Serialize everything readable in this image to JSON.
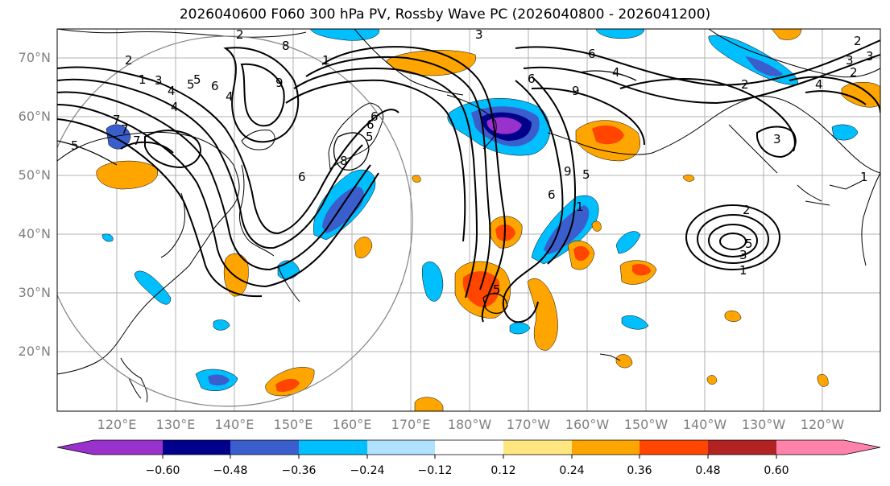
{
  "title": "2026040600 F060 300 hPa PV, Rossby Wave PC (2026040800 - 2026041200)",
  "lat_labels": [
    "70°N",
    "60°N",
    "50°N",
    "40°N",
    "30°N",
    "20°N"
  ],
  "lon_labels": [
    "120°E",
    "130°E",
    "140°E",
    "150°E",
    "160°E",
    "170°E",
    "180°W",
    "170°W",
    "160°W",
    "150°W",
    "140°W",
    "130°W",
    "120°W"
  ],
  "colorbar": {
    "ticks": [
      "−0.60",
      "−0.48",
      "−0.36",
      "−0.24",
      "−0.12",
      "0.12",
      "0.24",
      "0.36",
      "0.48",
      "0.60"
    ],
    "colors": [
      "#9932cc",
      "#00008b",
      "#3a5fcd",
      "#00bfff",
      "#b0e2ff",
      "#ffffff",
      "#ffe680",
      "#ffa500",
      "#ff4500",
      "#b22222",
      "#ff82ab"
    ],
    "extend": "both"
  },
  "contour_labels": [
    "2",
    "3",
    "4",
    "5",
    "6",
    "7",
    "8",
    "9",
    "1",
    "6",
    "5",
    "6",
    "4",
    "3",
    "2",
    "1",
    "9",
    "6",
    "5",
    "7",
    "8",
    "6",
    "5",
    "9",
    "5",
    "1",
    "6",
    "4",
    "2",
    "1",
    "3",
    "2",
    "5",
    "4",
    "3",
    "2",
    "3",
    "1",
    "5",
    "4",
    "2",
    "3",
    "7",
    "6"
  ],
  "colors": {
    "land": "#000000",
    "grid": "#b0b0b0",
    "circle": "#808080",
    "contour": "#000000"
  }
}
